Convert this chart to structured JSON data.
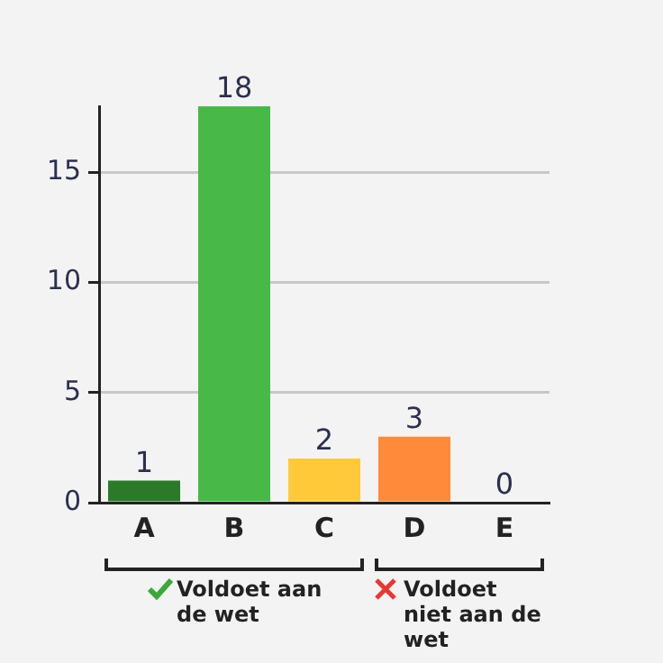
{
  "chart_data": {
    "type": "bar",
    "categories": [
      "A",
      "B",
      "C",
      "D",
      "E"
    ],
    "values": [
      1,
      18,
      2,
      3,
      0
    ],
    "colors": [
      "#2a7a2a",
      "#48b848",
      "#ffc93a",
      "#ff8a3a",
      "#e8453a"
    ],
    "ylim": [
      0,
      18
    ],
    "yticks": [
      0,
      5,
      10,
      15
    ],
    "grid": "y",
    "legend": false,
    "data_labels": true,
    "annotations": [
      "Voldoet aan de wet",
      "Voldoet niet aan de wet"
    ]
  }
}
